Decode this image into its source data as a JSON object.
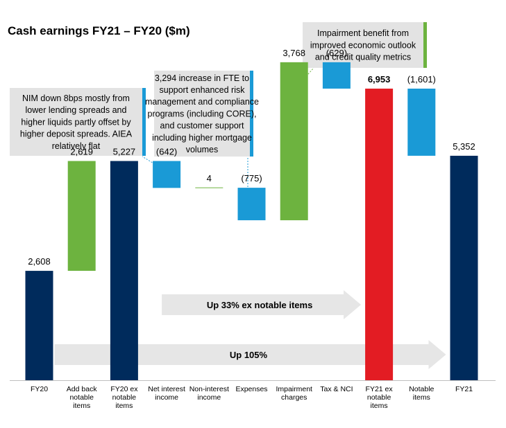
{
  "chart_data": {
    "type": "waterfall",
    "title": "Cash earnings FY21 – FY20 ($m)",
    "ylim": [
      0,
      7200
    ],
    "colors": {
      "total": "#002B5C",
      "increase": "#6DB33F",
      "decrease": "#1A9AD6",
      "highlight": "#E31C23",
      "note_bg": "#E3E3E3",
      "arrow": "#E6E6E6"
    },
    "bars": [
      {
        "category": "FY20",
        "category_lines": [
          "FY20"
        ],
        "start": 0,
        "end": 2608,
        "kind": "total",
        "label": "2,608"
      },
      {
        "category": "Add back notable items",
        "category_lines": [
          "Add back",
          "notable",
          "items"
        ],
        "start": 2608,
        "end": 5227,
        "kind": "increase",
        "label": "2,619"
      },
      {
        "category": "FY20 ex notable items",
        "category_lines": [
          "FY20 ex",
          "notable",
          "items"
        ],
        "start": 0,
        "end": 5227,
        "kind": "total",
        "label": "5,227"
      },
      {
        "category": "Net interest income",
        "category_lines": [
          "Net interest",
          "income"
        ],
        "start": 5227,
        "end": 4585,
        "kind": "decrease",
        "label": "(642)"
      },
      {
        "category": "Non-interest income",
        "category_lines": [
          "Non-interest",
          "income"
        ],
        "start": 4585,
        "end": 4589,
        "kind": "increase",
        "label": "4"
      },
      {
        "category": "Expenses",
        "category_lines": [
          "Expenses"
        ],
        "start": 4589,
        "end": 3814,
        "kind": "decrease",
        "label": "(775)"
      },
      {
        "category": "Impairment charges",
        "category_lines": [
          "Impairment",
          "charges"
        ],
        "start": 3814,
        "end": 7582,
        "kind": "increase",
        "label": "3,768"
      },
      {
        "category": "Tax & NCI",
        "category_lines": [
          "Tax & NCI"
        ],
        "start": 7582,
        "end": 6953,
        "kind": "decrease",
        "label": "(629)"
      },
      {
        "category": "FY21 ex notable items",
        "category_lines": [
          "FY21 ex",
          "notable",
          "items"
        ],
        "start": 0,
        "end": 6953,
        "kind": "highlight",
        "label": "6,953"
      },
      {
        "category": "Notable items",
        "category_lines": [
          "Notable",
          "items"
        ],
        "start": 6953,
        "end": 5352,
        "kind": "decrease",
        "label": "(1,601)"
      },
      {
        "category": "FY21",
        "category_lines": [
          "FY21"
        ],
        "start": 0,
        "end": 5352,
        "kind": "total",
        "label": "5,352"
      }
    ],
    "annotations": [
      {
        "name": "nim-note",
        "target": 3,
        "accent": "#1A9AD6",
        "lines": [
          "NIM down 8bps mostly from",
          "lower lending spreads and",
          "higher liquids partly offset by",
          "higher deposit spreads. AIEA",
          "relatively flat"
        ]
      },
      {
        "name": "expenses-note",
        "target": 5,
        "accent": "#1A9AD6",
        "lines": [
          "3,294 increase in FTE to",
          "support enhanced risk",
          "management and compliance",
          "programs (including CORE),",
          "and customer support",
          "including higher mortgage",
          "volumes"
        ]
      },
      {
        "name": "impairment-note",
        "target": 6,
        "accent": "#6DB33F",
        "lines": [
          "Impairment benefit from",
          "improved economic outlook",
          "and credit quality metrics"
        ]
      }
    ],
    "arrows": [
      {
        "name": "arrow-ex-notable",
        "from": 3,
        "to": 8,
        "text": "Up 33% ex notable items"
      },
      {
        "name": "arrow-total",
        "from": 0,
        "to": 10,
        "text": "Up 105%"
      }
    ]
  }
}
